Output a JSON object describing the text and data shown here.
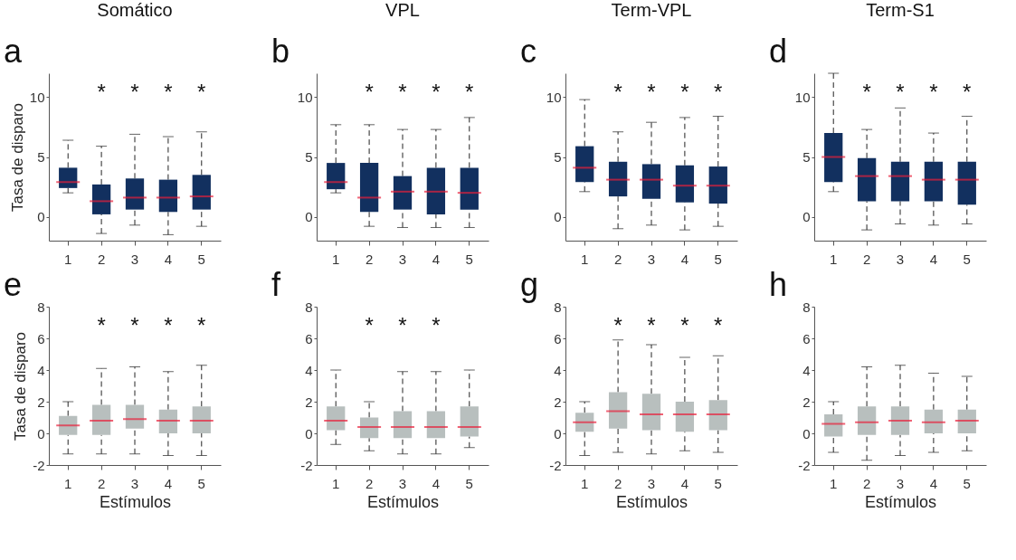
{
  "chart_data": [
    {
      "type": "box",
      "title": "Somático",
      "ylabel": "Tasa de disparo",
      "categories": [
        "1",
        "2",
        "3",
        "4",
        "5"
      ],
      "ylim": [
        -2,
        12
      ],
      "yticks": [
        0,
        5,
        10
      ],
      "annotations": [
        "a",
        "*",
        "*",
        "*",
        "*"
      ],
      "series": [
        {
          "color": "#12305f",
          "boxes": [
            {
              "low": 2.0,
              "q1": 2.4,
              "median": 2.9,
              "q3": 4.1,
              "high": 6.4
            },
            {
              "low": -1.4,
              "q1": 0.2,
              "median": 1.3,
              "q3": 2.7,
              "high": 5.9
            },
            {
              "low": -0.7,
              "q1": 0.6,
              "median": 1.6,
              "q3": 3.2,
              "high": 6.9
            },
            {
              "low": -1.5,
              "q1": 0.4,
              "median": 1.6,
              "q3": 3.1,
              "high": 6.7
            },
            {
              "low": -0.8,
              "q1": 0.6,
              "median": 1.7,
              "q3": 3.5,
              "high": 7.1
            }
          ]
        }
      ]
    },
    {
      "type": "box",
      "title": "VPL",
      "categories": [
        "1",
        "2",
        "3",
        "4",
        "5"
      ],
      "ylim": [
        -2,
        12
      ],
      "yticks": [
        0,
        5,
        10
      ],
      "annotations": [
        "b",
        "*",
        "*",
        "*",
        "*"
      ],
      "series": [
        {
          "color": "#12305f",
          "boxes": [
            {
              "low": 2.0,
              "q1": 2.3,
              "median": 2.9,
              "q3": 4.5,
              "high": 7.7
            },
            {
              "low": -0.8,
              "q1": 0.4,
              "median": 1.6,
              "q3": 4.5,
              "high": 7.7
            },
            {
              "low": -0.9,
              "q1": 0.6,
              "median": 2.1,
              "q3": 3.4,
              "high": 7.3
            },
            {
              "low": -0.9,
              "q1": 0.2,
              "median": 2.1,
              "q3": 4.1,
              "high": 7.3
            },
            {
              "low": -0.9,
              "q1": 0.6,
              "median": 2.0,
              "q3": 4.1,
              "high": 8.3
            }
          ]
        }
      ]
    },
    {
      "type": "box",
      "title": "Term-VPL",
      "categories": [
        "1",
        "2",
        "3",
        "4",
        "5"
      ],
      "ylim": [
        -2,
        12
      ],
      "yticks": [
        0,
        5,
        10
      ],
      "annotations": [
        "c",
        "*",
        "*",
        "*",
        "*"
      ],
      "series": [
        {
          "color": "#12305f",
          "boxes": [
            {
              "low": 2.1,
              "q1": 2.9,
              "median": 4.1,
              "q3": 5.9,
              "high": 9.8
            },
            {
              "low": -1.0,
              "q1": 1.7,
              "median": 3.1,
              "q3": 4.6,
              "high": 7.1
            },
            {
              "low": -0.7,
              "q1": 1.5,
              "median": 3.1,
              "q3": 4.4,
              "high": 7.9
            },
            {
              "low": -1.1,
              "q1": 1.2,
              "median": 2.6,
              "q3": 4.3,
              "high": 8.3
            },
            {
              "low": -0.8,
              "q1": 1.1,
              "median": 2.6,
              "q3": 4.2,
              "high": 8.4
            }
          ]
        }
      ]
    },
    {
      "type": "box",
      "title": "Term-S1",
      "categories": [
        "1",
        "2",
        "3",
        "4",
        "5"
      ],
      "ylim": [
        -2,
        12
      ],
      "yticks": [
        0,
        5,
        10
      ],
      "annotations": [
        "d",
        "*",
        "*",
        "*",
        "*"
      ],
      "series": [
        {
          "color": "#12305f",
          "boxes": [
            {
              "low": 2.1,
              "q1": 2.9,
              "median": 5.0,
              "q3": 7.0,
              "high": 12
            },
            {
              "low": -1.1,
              "q1": 1.3,
              "median": 3.4,
              "q3": 4.9,
              "high": 7.3
            },
            {
              "low": -0.6,
              "q1": 1.3,
              "median": 3.4,
              "q3": 4.6,
              "high": 9.1
            },
            {
              "low": -0.7,
              "q1": 1.3,
              "median": 3.1,
              "q3": 4.6,
              "high": 7.0
            },
            {
              "low": -0.6,
              "q1": 1.0,
              "median": 3.1,
              "q3": 4.6,
              "high": 8.4
            }
          ]
        }
      ]
    },
    {
      "type": "box",
      "xlabel": "Estímulos",
      "ylabel": "Tasa de disparo",
      "categories": [
        "1",
        "2",
        "3",
        "4",
        "5"
      ],
      "ylim": [
        -2,
        8
      ],
      "yticks": [
        -2,
        0,
        2,
        4,
        6,
        8
      ],
      "annotations": [
        "e",
        "*",
        "*",
        "*",
        "*"
      ],
      "series": [
        {
          "color": "#b8bfbe",
          "boxes": [
            {
              "low": -1.3,
              "q1": -0.1,
              "median": 0.5,
              "q3": 1.1,
              "high": 2.0
            },
            {
              "low": -1.3,
              "q1": -0.1,
              "median": 0.8,
              "q3": 1.8,
              "high": 4.1
            },
            {
              "low": -1.3,
              "q1": 0.3,
              "median": 0.9,
              "q3": 1.8,
              "high": 4.2
            },
            {
              "low": -1.4,
              "q1": 0.0,
              "median": 0.8,
              "q3": 1.5,
              "high": 3.9
            },
            {
              "low": -1.4,
              "q1": 0.0,
              "median": 0.8,
              "q3": 1.7,
              "high": 4.3
            }
          ]
        }
      ]
    },
    {
      "type": "box",
      "xlabel": "Estímulos",
      "categories": [
        "1",
        "2",
        "3",
        "4",
        "5"
      ],
      "ylim": [
        -2,
        8
      ],
      "yticks": [
        -2,
        0,
        2,
        4,
        6,
        8
      ],
      "annotations": [
        "f",
        "*",
        "*",
        "*"
      ],
      "series": [
        {
          "color": "#b8bfbe",
          "boxes": [
            {
              "low": -0.7,
              "q1": 0.2,
              "median": 0.8,
              "q3": 1.7,
              "high": 4.0
            },
            {
              "low": -1.1,
              "q1": -0.3,
              "median": 0.4,
              "q3": 1.0,
              "high": 2.0
            },
            {
              "low": -1.3,
              "q1": -0.3,
              "median": 0.4,
              "q3": 1.4,
              "high": 3.9
            },
            {
              "low": -1.3,
              "q1": -0.3,
              "median": 0.4,
              "q3": 1.4,
              "high": 3.9
            },
            {
              "low": -0.9,
              "q1": -0.2,
              "median": 0.4,
              "q3": 1.7,
              "high": 4.0
            }
          ]
        }
      ]
    },
    {
      "type": "box",
      "xlabel": "Estímulos",
      "categories": [
        "1",
        "2",
        "3",
        "4",
        "5"
      ],
      "ylim": [
        -2,
        8
      ],
      "yticks": [
        -2,
        0,
        2,
        4,
        6,
        8
      ],
      "annotations": [
        "g",
        "*",
        "*",
        "*",
        "*"
      ],
      "series": [
        {
          "color": "#b8bfbe",
          "boxes": [
            {
              "low": -1.4,
              "q1": 0.1,
              "median": 0.7,
              "q3": 1.3,
              "high": 2.0
            },
            {
              "low": -1.2,
              "q1": 0.3,
              "median": 1.4,
              "q3": 2.6,
              "high": 5.9
            },
            {
              "low": -1.3,
              "q1": 0.2,
              "median": 1.2,
              "q3": 2.5,
              "high": 5.6
            },
            {
              "low": -1.1,
              "q1": 0.1,
              "median": 1.2,
              "q3": 2.0,
              "high": 4.8
            },
            {
              "low": -1.2,
              "q1": 0.2,
              "median": 1.2,
              "q3": 2.1,
              "high": 4.9
            }
          ]
        }
      ]
    },
    {
      "type": "box",
      "xlabel": "Estímulos",
      "categories": [
        "1",
        "2",
        "3",
        "4",
        "5"
      ],
      "ylim": [
        -2,
        8
      ],
      "yticks": [
        -2,
        0,
        2,
        4,
        6,
        8
      ],
      "annotations": [
        "h"
      ],
      "series": [
        {
          "color": "#b8bfbe",
          "boxes": [
            {
              "low": -1.2,
              "q1": -0.2,
              "median": 0.6,
              "q3": 1.2,
              "high": 2.0
            },
            {
              "low": -1.7,
              "q1": -0.1,
              "median": 0.7,
              "q3": 1.7,
              "high": 4.2
            },
            {
              "low": -1.4,
              "q1": -0.1,
              "median": 0.8,
              "q3": 1.7,
              "high": 4.3
            },
            {
              "low": -1.2,
              "q1": 0.0,
              "median": 0.7,
              "q3": 1.5,
              "high": 3.8
            },
            {
              "low": -1.1,
              "q1": 0.0,
              "median": 0.8,
              "q3": 1.5,
              "high": 3.6
            }
          ]
        }
      ]
    }
  ]
}
